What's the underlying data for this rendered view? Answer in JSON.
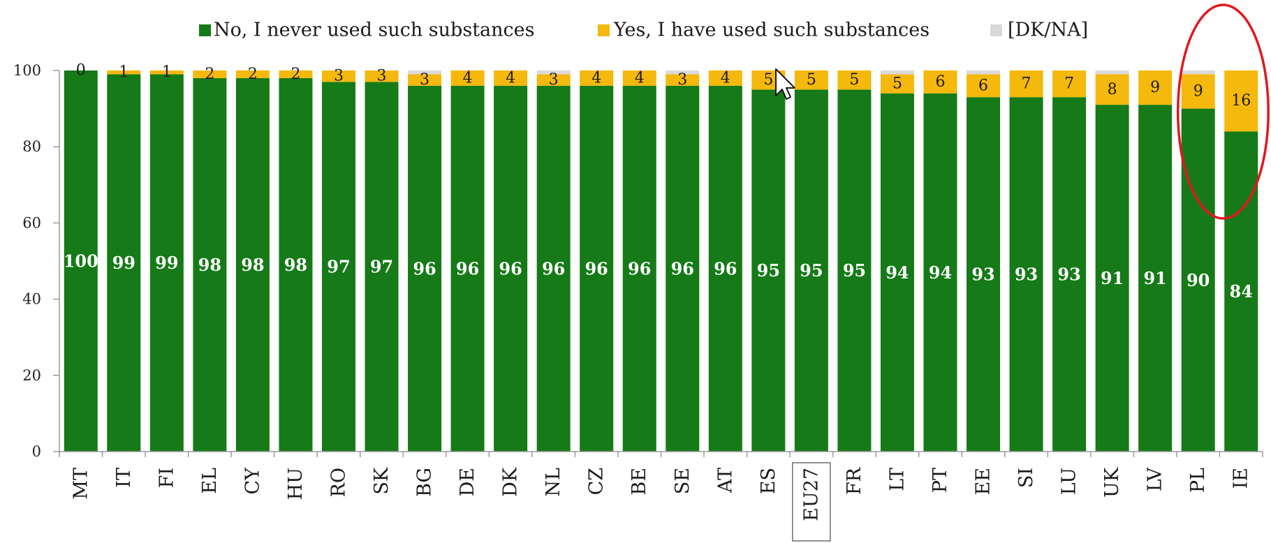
{
  "chart_data": {
    "type": "bar",
    "stacked": true,
    "categories": [
      "MT",
      "IT",
      "FI",
      "EL",
      "CY",
      "HU",
      "RO",
      "SK",
      "BG",
      "DE",
      "DK",
      "NL",
      "CZ",
      "BE",
      "SE",
      "AT",
      "ES",
      "EU27",
      "FR",
      "LT",
      "PT",
      "EE",
      "SI",
      "LU",
      "UK",
      "LV",
      "PL",
      "IE"
    ],
    "series": [
      {
        "name": "No, I never used such substances",
        "color": "#157a17",
        "values": [
          100,
          99,
          99,
          98,
          98,
          98,
          97,
          97,
          96,
          96,
          96,
          96,
          96,
          96,
          96,
          96,
          95,
          95,
          95,
          94,
          94,
          93,
          93,
          93,
          91,
          91,
          90,
          84
        ]
      },
      {
        "name": "Yes, I have used such substances",
        "color": "#f5b80c",
        "values": [
          0,
          1,
          1,
          2,
          2,
          2,
          3,
          3,
          3,
          4,
          4,
          3,
          4,
          4,
          3,
          4,
          5,
          5,
          5,
          5,
          6,
          6,
          7,
          7,
          8,
          9,
          9,
          16
        ]
      },
      {
        "name": "[DK/NA]",
        "color": "#d9d9d9",
        "values": [
          0,
          0,
          0,
          0,
          0,
          0,
          0,
          0,
          1,
          0,
          0,
          1,
          0,
          0,
          1,
          0,
          0,
          0,
          0,
          1,
          0,
          1,
          0,
          0,
          1,
          0,
          1,
          0
        ]
      }
    ],
    "ylim": [
      0,
      100
    ],
    "yticks": [
      0,
      20,
      40,
      60,
      80,
      100
    ],
    "grid": false,
    "legend_position": "top",
    "emphasis": {
      "boxed_category": "EU27",
      "circled_categories": [
        "PL",
        "IE"
      ],
      "circle_color": "#e3171f"
    }
  },
  "cursor_icon": "arrow-pointer-icon"
}
